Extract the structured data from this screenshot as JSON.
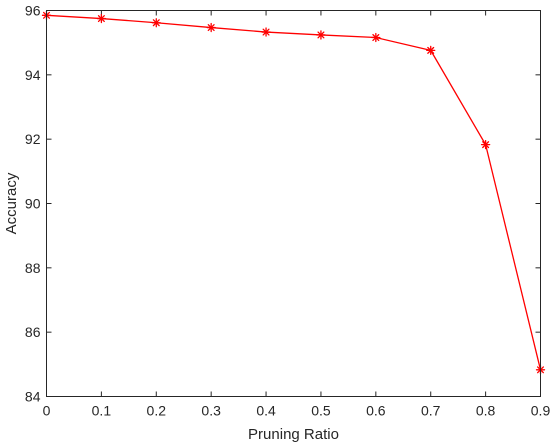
{
  "chart_data": {
    "type": "line",
    "xlabel": "Pruning Ratio",
    "ylabel": "Accuracy",
    "xlim": [
      0,
      0.9
    ],
    "ylim": [
      84,
      96
    ],
    "xticks": [
      0,
      0.1,
      0.2,
      0.3,
      0.4,
      0.5,
      0.6,
      0.7,
      0.8,
      0.9
    ],
    "xtick_labels": [
      "0",
      "0.1",
      "0.2",
      "0.3",
      "0.4",
      "0.5",
      "0.6",
      "0.7",
      "0.8",
      "0.9"
    ],
    "yticks": [
      84,
      86,
      88,
      90,
      92,
      94,
      96
    ],
    "ytick_labels": [
      "84",
      "86",
      "88",
      "90",
      "92",
      "94",
      "96"
    ],
    "grid": false,
    "series": [
      {
        "color": "#ff0000",
        "marker": "asterisk",
        "x": [
          0,
          0.1,
          0.2,
          0.3,
          0.4,
          0.5,
          0.6,
          0.7,
          0.8,
          0.9
        ],
        "y": [
          95.85,
          95.75,
          95.62,
          95.47,
          95.33,
          95.24,
          95.16,
          94.76,
          91.83,
          84.83
        ]
      }
    ]
  }
}
